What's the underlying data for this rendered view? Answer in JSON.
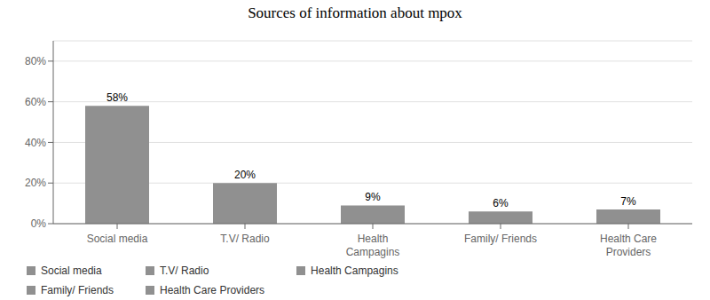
{
  "chart_data": {
    "type": "bar",
    "title": "Sources of information about mpox",
    "categories": [
      "Social media",
      "T.V/ Radio",
      "Health\nCampagins",
      "Family/ Friends",
      "Health Care\nProviders"
    ],
    "values": [
      58,
      20,
      9,
      6,
      7
    ],
    "value_labels": [
      "58%",
      "20%",
      "9%",
      "6%",
      "7%"
    ],
    "data_labels": true,
    "color": "#909090",
    "ylim": [
      0,
      90
    ],
    "yticks": [
      {
        "value": 0,
        "label": "0%"
      },
      {
        "value": 20,
        "label": "20%"
      },
      {
        "value": 40,
        "label": "40%"
      },
      {
        "value": 60,
        "label": "60%"
      },
      {
        "value": 80,
        "label": "80%"
      }
    ],
    "grid": true,
    "legend": "bottom",
    "legend_labels": [
      "Social media",
      "T.V/ Radio",
      "Health Campagins",
      "Family/ Friends",
      "Health Care Providers"
    ]
  }
}
